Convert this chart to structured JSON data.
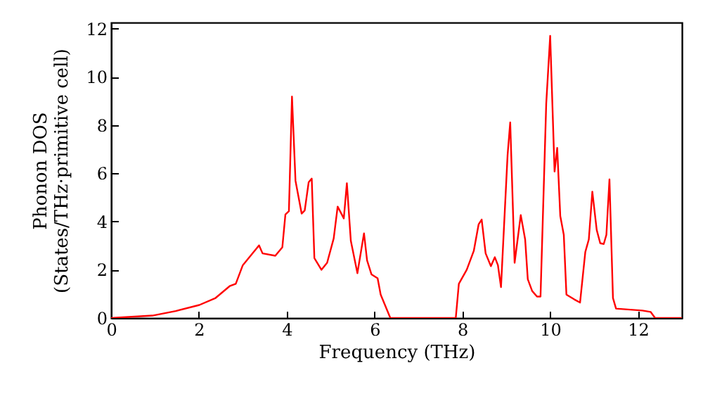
{
  "chart_data": {
    "type": "line",
    "xlabel": "Frequency (THz)",
    "ylabel": "Phonon DOS\n(States/THz·primitive cell)",
    "xlim": [
      0,
      13
    ],
    "ylim": [
      0,
      12.25
    ],
    "xticks": [
      0,
      2,
      4,
      6,
      8,
      10,
      12
    ],
    "yticks": [
      0,
      2,
      4,
      6,
      8,
      10,
      12
    ],
    "grid": false,
    "line_style": "solid",
    "x": [
      0,
      0.94,
      1.47,
      2.01,
      2.38,
      2.7,
      2.84,
      3.0,
      3.37,
      3.45,
      3.74,
      3.9,
      3.97,
      4.05,
      4.12,
      4.2,
      4.34,
      4.41,
      4.5,
      4.57,
      4.63,
      4.79,
      4.92,
      5.07,
      5.16,
      5.3,
      5.37,
      5.46,
      5.61,
      5.76,
      5.83,
      5.93,
      6.07,
      6.14,
      6.36,
      7.85,
      7.92,
      8.1,
      8.26,
      8.37,
      8.44,
      8.53,
      8.65,
      8.74,
      8.81,
      8.88,
      9.03,
      9.09,
      9.19,
      9.33,
      9.43,
      9.49,
      9.59,
      9.7,
      9.78,
      9.91,
      10.0,
      10.1,
      10.16,
      10.23,
      10.31,
      10.37,
      10.55,
      10.68,
      10.8,
      10.88,
      10.96,
      11.06,
      11.14,
      11.22,
      11.28,
      11.35,
      11.43,
      11.5,
      12.1,
      12.29,
      12.39,
      13.0
    ],
    "series": [
      {
        "color": "#ff0000",
        "values": [
          0,
          0.1,
          0.29,
          0.54,
          0.83,
          1.32,
          1.42,
          2.19,
          3.01,
          2.68,
          2.58,
          2.93,
          4.29,
          4.43,
          9.18,
          5.69,
          4.33,
          4.46,
          5.63,
          5.78,
          2.48,
          2.0,
          2.29,
          3.3,
          4.62,
          4.13,
          5.59,
          3.2,
          1.86,
          3.51,
          2.39,
          1.81,
          1.65,
          0.97,
          0,
          0,
          1.42,
          2.0,
          2.78,
          3.88,
          4.08,
          2.68,
          2.15,
          2.52,
          2.19,
          1.28,
          6.76,
          8.11,
          2.29,
          4.27,
          3.26,
          1.61,
          1.12,
          0.89,
          0.89,
          8.89,
          11.7,
          6.07,
          7.05,
          4.23,
          3.45,
          0.97,
          0.77,
          0.64,
          2.74,
          3.26,
          5.24,
          3.65,
          3.1,
          3.07,
          3.45,
          5.75,
          0.83,
          0.39,
          0.31,
          0.25,
          0,
          0
        ]
      }
    ]
  }
}
